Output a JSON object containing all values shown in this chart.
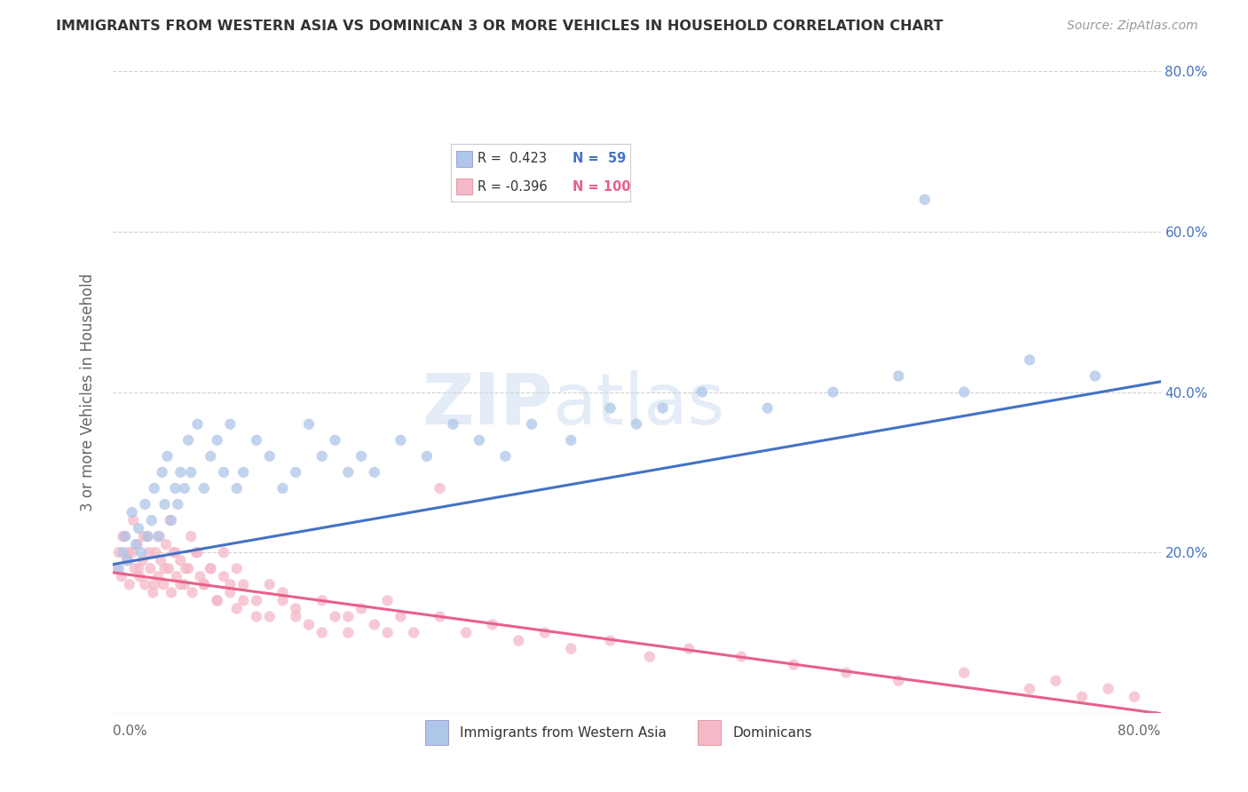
{
  "title": "IMMIGRANTS FROM WESTERN ASIA VS DOMINICAN 3 OR MORE VEHICLES IN HOUSEHOLD CORRELATION CHART",
  "source": "Source: ZipAtlas.com",
  "ylabel": "3 or more Vehicles in Household",
  "xlim": [
    0.0,
    0.8
  ],
  "ylim": [
    0.0,
    0.8
  ],
  "color_blue": "#aec6e8",
  "color_pink": "#f5b8c8",
  "line_blue": "#4472c4",
  "line_pink": "#e8608a",
  "watermark_zip": "ZIP",
  "watermark_atlas": "atlas",
  "background": "#ffffff",
  "grid_color": "#cccccc",
  "blue_intercept": 0.185,
  "blue_slope": 0.285,
  "pink_intercept": 0.175,
  "pink_slope": -0.22,
  "blue_scatter_x": [
    0.005,
    0.008,
    0.01,
    0.012,
    0.015,
    0.018,
    0.02,
    0.022,
    0.025,
    0.027,
    0.03,
    0.032,
    0.035,
    0.038,
    0.04,
    0.042,
    0.045,
    0.048,
    0.05,
    0.052,
    0.055,
    0.058,
    0.06,
    0.065,
    0.07,
    0.075,
    0.08,
    0.085,
    0.09,
    0.095,
    0.1,
    0.11,
    0.12,
    0.13,
    0.14,
    0.15,
    0.16,
    0.17,
    0.18,
    0.19,
    0.2,
    0.22,
    0.24,
    0.26,
    0.28,
    0.3,
    0.32,
    0.35,
    0.38,
    0.4,
    0.42,
    0.45,
    0.5,
    0.55,
    0.6,
    0.65,
    0.7,
    0.75,
    0.62
  ],
  "blue_scatter_y": [
    0.18,
    0.2,
    0.22,
    0.19,
    0.25,
    0.21,
    0.23,
    0.2,
    0.26,
    0.22,
    0.24,
    0.28,
    0.22,
    0.3,
    0.26,
    0.32,
    0.24,
    0.28,
    0.26,
    0.3,
    0.28,
    0.34,
    0.3,
    0.36,
    0.28,
    0.32,
    0.34,
    0.3,
    0.36,
    0.28,
    0.3,
    0.34,
    0.32,
    0.28,
    0.3,
    0.36,
    0.32,
    0.34,
    0.3,
    0.32,
    0.3,
    0.34,
    0.32,
    0.36,
    0.34,
    0.32,
    0.36,
    0.34,
    0.38,
    0.36,
    0.38,
    0.4,
    0.38,
    0.4,
    0.42,
    0.4,
    0.44,
    0.42,
    0.64
  ],
  "pink_scatter_x": [
    0.003,
    0.005,
    0.007,
    0.009,
    0.011,
    0.013,
    0.015,
    0.017,
    0.019,
    0.021,
    0.023,
    0.025,
    0.027,
    0.029,
    0.031,
    0.033,
    0.035,
    0.037,
    0.039,
    0.041,
    0.043,
    0.045,
    0.047,
    0.049,
    0.052,
    0.055,
    0.058,
    0.061,
    0.064,
    0.067,
    0.07,
    0.075,
    0.08,
    0.085,
    0.09,
    0.095,
    0.1,
    0.11,
    0.12,
    0.13,
    0.14,
    0.15,
    0.16,
    0.17,
    0.18,
    0.19,
    0.2,
    0.21,
    0.22,
    0.23,
    0.25,
    0.27,
    0.29,
    0.31,
    0.33,
    0.35,
    0.38,
    0.41,
    0.44,
    0.48,
    0.52,
    0.56,
    0.6,
    0.65,
    0.7,
    0.72,
    0.74,
    0.76,
    0.78,
    0.008,
    0.012,
    0.016,
    0.02,
    0.024,
    0.028,
    0.032,
    0.036,
    0.04,
    0.044,
    0.048,
    0.052,
    0.056,
    0.06,
    0.065,
    0.07,
    0.075,
    0.08,
    0.085,
    0.09,
    0.095,
    0.1,
    0.11,
    0.12,
    0.13,
    0.14,
    0.16,
    0.18,
    0.21,
    0.25
  ],
  "pink_scatter_y": [
    0.18,
    0.2,
    0.17,
    0.22,
    0.19,
    0.16,
    0.2,
    0.18,
    0.21,
    0.17,
    0.19,
    0.16,
    0.22,
    0.18,
    0.15,
    0.2,
    0.17,
    0.19,
    0.16,
    0.21,
    0.18,
    0.15,
    0.2,
    0.17,
    0.19,
    0.16,
    0.18,
    0.15,
    0.2,
    0.17,
    0.16,
    0.18,
    0.14,
    0.17,
    0.15,
    0.13,
    0.16,
    0.14,
    0.12,
    0.15,
    0.13,
    0.11,
    0.14,
    0.12,
    0.1,
    0.13,
    0.11,
    0.14,
    0.12,
    0.1,
    0.12,
    0.1,
    0.11,
    0.09,
    0.1,
    0.08,
    0.09,
    0.07,
    0.08,
    0.07,
    0.06,
    0.05,
    0.04,
    0.05,
    0.03,
    0.04,
    0.02,
    0.03,
    0.02,
    0.22,
    0.2,
    0.24,
    0.18,
    0.22,
    0.2,
    0.16,
    0.22,
    0.18,
    0.24,
    0.2,
    0.16,
    0.18,
    0.22,
    0.2,
    0.16,
    0.18,
    0.14,
    0.2,
    0.16,
    0.18,
    0.14,
    0.12,
    0.16,
    0.14,
    0.12,
    0.1,
    0.12,
    0.1,
    0.28
  ]
}
